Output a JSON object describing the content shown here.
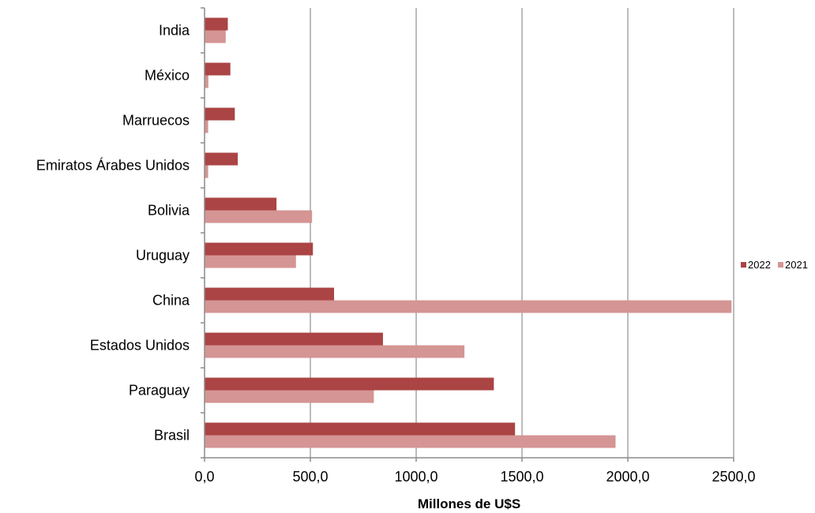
{
  "chart_data": {
    "type": "bar",
    "orientation": "horizontal",
    "categories": [
      "India",
      "México",
      "Marruecos",
      "Emiratos Árabes Unidos",
      "Bolivia",
      "Uruguay",
      "China",
      "Estados Unidos",
      "Paraguay",
      "Brasil"
    ],
    "series": [
      {
        "name": "2022",
        "color": "#ab4444",
        "values": [
          110,
          122,
          143,
          157,
          340,
          512,
          612,
          843,
          1367,
          1467
        ]
      },
      {
        "name": "2021",
        "color": "#d49594",
        "values": [
          100,
          18,
          17,
          17,
          508,
          432,
          2490,
          1228,
          800,
          1942
        ]
      }
    ],
    "xlabel": "Millones de U$S",
    "xlim": [
      0,
      2500
    ],
    "xticks": [
      "0,0",
      "500,0",
      "1000,0",
      "1500,0",
      "2000,0",
      "2500,0"
    ],
    "grid": "vertical",
    "legend_position": "right"
  }
}
